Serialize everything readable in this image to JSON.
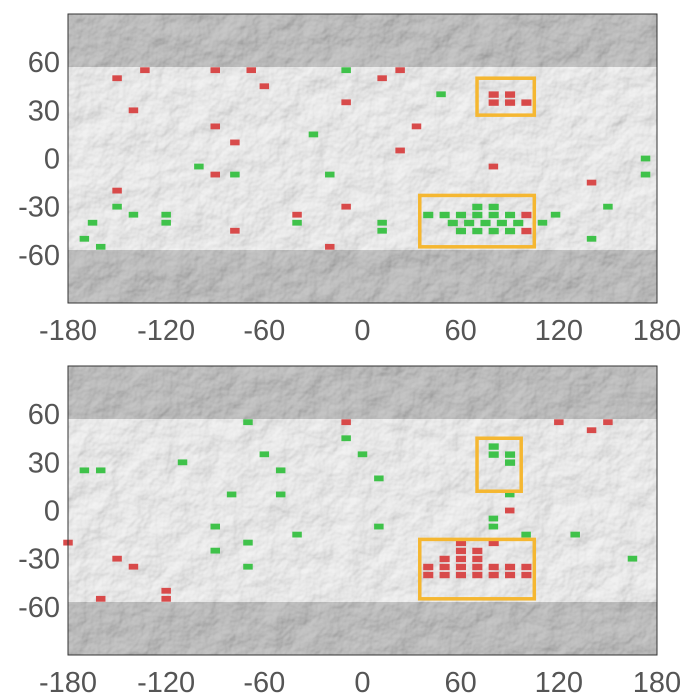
{
  "panels": [
    {
      "id": "top",
      "x_ticks": [
        "-180",
        "-120",
        "-60",
        "0",
        "60",
        "120",
        "180"
      ],
      "y_ticks": [
        "60",
        "30",
        "0",
        "-30",
        "-60"
      ],
      "highlight_boxes": [
        {
          "lon_range": [
            70,
            105
          ],
          "lat_range": [
            27,
            50
          ]
        },
        {
          "lon_range": [
            35,
            105
          ],
          "lat_range": [
            -55,
            -23
          ]
        }
      ],
      "cells": [
        {
          "lon": -150,
          "lat": 50,
          "status": "red"
        },
        {
          "lon": -133,
          "lat": 55,
          "status": "red"
        },
        {
          "lon": -90,
          "lat": 55,
          "status": "red"
        },
        {
          "lon": -68,
          "lat": 55,
          "status": "red"
        },
        {
          "lon": -60,
          "lat": 45,
          "status": "red"
        },
        {
          "lon": -140,
          "lat": 30,
          "status": "red"
        },
        {
          "lon": -90,
          "lat": 20,
          "status": "red"
        },
        {
          "lon": -78,
          "lat": 10,
          "status": "red"
        },
        {
          "lon": -10,
          "lat": 55,
          "status": "green"
        },
        {
          "lon": 12,
          "lat": 50,
          "status": "red"
        },
        {
          "lon": 23,
          "lat": 55,
          "status": "red"
        },
        {
          "lon": -10,
          "lat": 35,
          "status": "red"
        },
        {
          "lon": 48,
          "lat": 40,
          "status": "green"
        },
        {
          "lon": 33,
          "lat": 20,
          "status": "red"
        },
        {
          "lon": 23,
          "lat": 5,
          "status": "red"
        },
        {
          "lon": -30,
          "lat": 15,
          "status": "green"
        },
        {
          "lon": -100,
          "lat": -5,
          "status": "green"
        },
        {
          "lon": -90,
          "lat": -10,
          "status": "red"
        },
        {
          "lon": -78,
          "lat": -10,
          "status": "green"
        },
        {
          "lon": -20,
          "lat": -10,
          "status": "green"
        },
        {
          "lon": 80,
          "lat": -5,
          "status": "red"
        },
        {
          "lon": 140,
          "lat": -15,
          "status": "red"
        },
        {
          "lon": 173,
          "lat": 0,
          "status": "green"
        },
        {
          "lon": 173,
          "lat": -10,
          "status": "green"
        },
        {
          "lon": -150,
          "lat": -20,
          "status": "red"
        },
        {
          "lon": -150,
          "lat": -30,
          "status": "green"
        },
        {
          "lon": -140,
          "lat": -35,
          "status": "green"
        },
        {
          "lon": -120,
          "lat": -35,
          "status": "green"
        },
        {
          "lon": -120,
          "lat": -40,
          "status": "green"
        },
        {
          "lon": -165,
          "lat": -40,
          "status": "green"
        },
        {
          "lon": -170,
          "lat": -50,
          "status": "green"
        },
        {
          "lon": -160,
          "lat": -55,
          "status": "green"
        },
        {
          "lon": -40,
          "lat": -35,
          "status": "red"
        },
        {
          "lon": -40,
          "lat": -40,
          "status": "green"
        },
        {
          "lon": -10,
          "lat": -30,
          "status": "red"
        },
        {
          "lon": -78,
          "lat": -45,
          "status": "red"
        },
        {
          "lon": -20,
          "lat": -55,
          "status": "red"
        },
        {
          "lon": 12,
          "lat": -40,
          "status": "green"
        },
        {
          "lon": 12,
          "lat": -45,
          "status": "green"
        },
        {
          "lon": 110,
          "lat": -40,
          "status": "green"
        },
        {
          "lon": 118,
          "lat": -35,
          "status": "green"
        },
        {
          "lon": 140,
          "lat": -50,
          "status": "green"
        },
        {
          "lon": 150,
          "lat": -30,
          "status": "green"
        }
      ],
      "boxed_regions": [
        {
          "cells": [
            [
              80,
              40,
              "red"
            ],
            [
              90,
              40,
              "red"
            ],
            [
              100,
              35,
              "red"
            ],
            [
              90,
              35,
              "red"
            ],
            [
              80,
              35,
              "red"
            ]
          ]
        },
        {
          "cells": [
            [
              40,
              -35,
              "green"
            ],
            [
              50,
              -35,
              "green"
            ],
            [
              60,
              -35,
              "green"
            ],
            [
              70,
              -35,
              "green"
            ],
            [
              80,
              -35,
              "green"
            ],
            [
              90,
              -35,
              "green"
            ],
            [
              55,
              -40,
              "green"
            ],
            [
              65,
              -40,
              "green"
            ],
            [
              75,
              -40,
              "green"
            ],
            [
              85,
              -40,
              "green"
            ],
            [
              60,
              -45,
              "green"
            ],
            [
              70,
              -45,
              "green"
            ],
            [
              80,
              -45,
              "green"
            ],
            [
              90,
              -45,
              "green"
            ],
            [
              70,
              -30,
              "green"
            ],
            [
              80,
              -30,
              "green"
            ],
            [
              100,
              -35,
              "red"
            ],
            [
              100,
              -45,
              "red"
            ],
            [
              95,
              -40,
              "green"
            ]
          ]
        }
      ]
    },
    {
      "id": "bottom",
      "x_ticks": [
        "-180",
        "-120",
        "-60",
        "0",
        "60",
        "120",
        "180"
      ],
      "y_ticks": [
        "60",
        "30",
        "0",
        "-30",
        "-60"
      ],
      "highlight_boxes": [
        {
          "lon_range": [
            70,
            97
          ],
          "lat_range": [
            12,
            45
          ]
        },
        {
          "lon_range": [
            35,
            105
          ],
          "lat_range": [
            -55,
            -18
          ]
        }
      ],
      "cells": [
        {
          "lon": -70,
          "lat": 55,
          "status": "green"
        },
        {
          "lon": -10,
          "lat": 55,
          "status": "red"
        },
        {
          "lon": -10,
          "lat": 45,
          "status": "green"
        },
        {
          "lon": 0,
          "lat": 35,
          "status": "green"
        },
        {
          "lon": 10,
          "lat": 20,
          "status": "green"
        },
        {
          "lon": 120,
          "lat": 55,
          "status": "red"
        },
        {
          "lon": 140,
          "lat": 50,
          "status": "red"
        },
        {
          "lon": 150,
          "lat": 55,
          "status": "red"
        },
        {
          "lon": -170,
          "lat": 25,
          "status": "green"
        },
        {
          "lon": -160,
          "lat": 25,
          "status": "green"
        },
        {
          "lon": -110,
          "lat": 30,
          "status": "green"
        },
        {
          "lon": -60,
          "lat": 35,
          "status": "green"
        },
        {
          "lon": -50,
          "lat": 25,
          "status": "green"
        },
        {
          "lon": -80,
          "lat": 10,
          "status": "green"
        },
        {
          "lon": -50,
          "lat": 10,
          "status": "green"
        },
        {
          "lon": -90,
          "lat": -10,
          "status": "green"
        },
        {
          "lon": -70,
          "lat": -20,
          "status": "green"
        },
        {
          "lon": -90,
          "lat": -25,
          "status": "green"
        },
        {
          "lon": -70,
          "lat": -35,
          "status": "green"
        },
        {
          "lon": -40,
          "lat": -15,
          "status": "green"
        },
        {
          "lon": 10,
          "lat": -10,
          "status": "green"
        },
        {
          "lon": 90,
          "lat": 10,
          "status": "green"
        },
        {
          "lon": 90,
          "lat": 0,
          "status": "red"
        },
        {
          "lon": 80,
          "lat": -5,
          "status": "green"
        },
        {
          "lon": 80,
          "lat": -10,
          "status": "green"
        },
        {
          "lon": 100,
          "lat": -15,
          "status": "green"
        },
        {
          "lon": 130,
          "lat": -15,
          "status": "green"
        },
        {
          "lon": 165,
          "lat": -30,
          "status": "green"
        },
        {
          "lon": -180,
          "lat": -20,
          "status": "red"
        },
        {
          "lon": -150,
          "lat": -30,
          "status": "red"
        },
        {
          "lon": -140,
          "lat": -35,
          "status": "red"
        },
        {
          "lon": -160,
          "lat": -55,
          "status": "red"
        },
        {
          "lon": -120,
          "lat": -50,
          "status": "red"
        },
        {
          "lon": -120,
          "lat": -55,
          "status": "red"
        }
      ],
      "boxed_regions": [
        {
          "cells": [
            [
              80,
              40,
              "green"
            ],
            [
              80,
              35,
              "green"
            ],
            [
              90,
              35,
              "green"
            ],
            [
              90,
              30,
              "green"
            ]
          ]
        },
        {
          "cells": [
            [
              40,
              -35,
              "red"
            ],
            [
              50,
              -35,
              "red"
            ],
            [
              60,
              -35,
              "red"
            ],
            [
              70,
              -35,
              "red"
            ],
            [
              80,
              -35,
              "red"
            ],
            [
              90,
              -35,
              "red"
            ],
            [
              40,
              -40,
              "red"
            ],
            [
              50,
              -40,
              "red"
            ],
            [
              60,
              -40,
              "red"
            ],
            [
              70,
              -40,
              "red"
            ],
            [
              80,
              -40,
              "red"
            ],
            [
              90,
              -40,
              "red"
            ],
            [
              50,
              -30,
              "red"
            ],
            [
              60,
              -30,
              "red"
            ],
            [
              70,
              -30,
              "red"
            ],
            [
              60,
              -25,
              "red"
            ],
            [
              70,
              -25,
              "red"
            ],
            [
              100,
              -40,
              "red"
            ],
            [
              100,
              -35,
              "red"
            ],
            [
              60,
              -20,
              "red"
            ],
            [
              80,
              -20,
              "red"
            ]
          ]
        }
      ]
    }
  ],
  "colors": {
    "red_cell": "#d84a4a",
    "green_cell": "#3fc24a",
    "box": "#f5b731",
    "tick_label": "#555555"
  }
}
